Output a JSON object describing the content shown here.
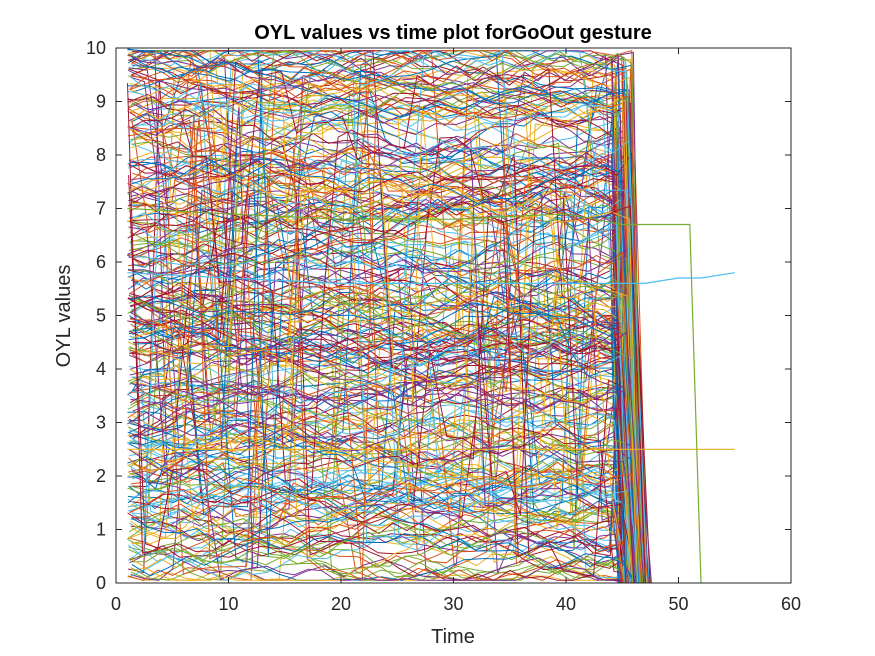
{
  "chart_data": {
    "type": "line",
    "title": "OYL values vs time plot forGoOut gesture",
    "xlabel": "Time",
    "ylabel": "OYL values",
    "xlim": [
      0,
      60
    ],
    "ylim": [
      0,
      10
    ],
    "xticks": [
      0,
      10,
      20,
      30,
      40,
      50,
      60
    ],
    "yticks": [
      0,
      1,
      2,
      3,
      4,
      5,
      6,
      7,
      8,
      9,
      10
    ],
    "grid": false,
    "legend": "none",
    "colors": [
      "#0072BD",
      "#D95319",
      "#EDB120",
      "#7E2F8E",
      "#77AC30",
      "#4DBEEE",
      "#A2142F"
    ],
    "series": [
      {
        "x": [
          1,
          5,
          10,
          15,
          20,
          25,
          30,
          35,
          40,
          45,
          47,
          55
        ],
        "y": [
          2.5,
          2.5,
          2.5,
          2.5,
          2.5,
          2.5,
          2.5,
          2.5,
          2.5,
          2.5,
          2.5,
          2.5
        ]
      },
      {
        "x": [
          1,
          10,
          20,
          30,
          40,
          45,
          46,
          47,
          51,
          52
        ],
        "y": [
          7.0,
          6.9,
          6.8,
          6.8,
          6.9,
          6.7,
          6.7,
          6.7,
          6.7,
          0
        ]
      },
      {
        "x": [
          1,
          10,
          20,
          30,
          40,
          45,
          46,
          47,
          50,
          52,
          55
        ],
        "y": [
          5.8,
          5.7,
          5.6,
          5.6,
          5.6,
          5.6,
          5.6,
          5.6,
          5.7,
          5.7,
          5.8
        ]
      }
    ]
  }
}
